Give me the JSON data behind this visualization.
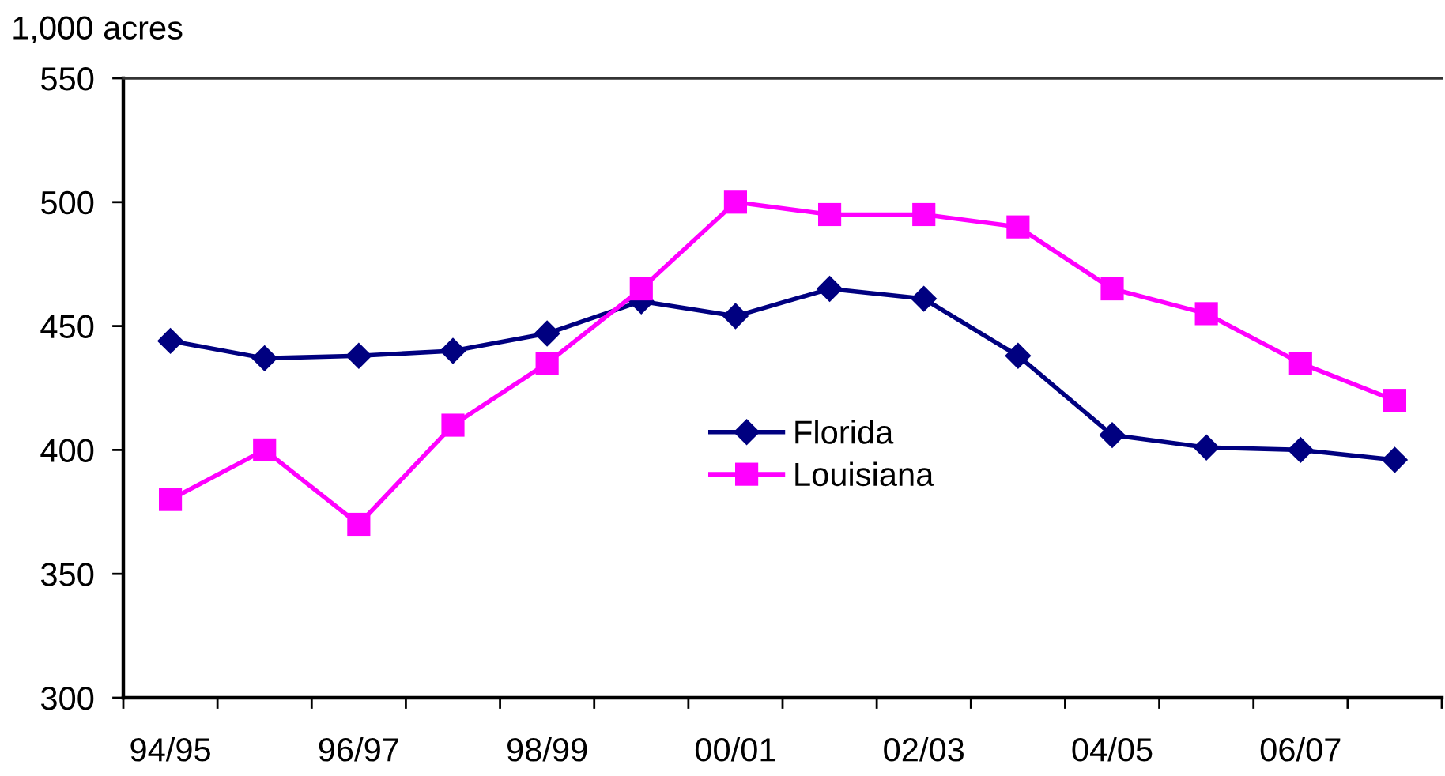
{
  "chart_data": {
    "type": "line",
    "ylabel": "1,000 acres",
    "categories": [
      "94/95",
      null,
      "96/97",
      null,
      "98/99",
      null,
      "00/01",
      null,
      "02/03",
      null,
      "04/05",
      null,
      "06/07",
      null
    ],
    "series": [
      {
        "name": "Florida",
        "color": "#000080",
        "marker": "diamond",
        "values": [
          444,
          437,
          438,
          440,
          447,
          460,
          454,
          465,
          461,
          438,
          406,
          401,
          400,
          396
        ]
      },
      {
        "name": "Louisiana",
        "color": "#ff00ff",
        "marker": "square",
        "values": [
          380,
          400,
          370,
          410,
          435,
          465,
          500,
          495,
          495,
          490,
          465,
          455,
          435,
          420
        ]
      }
    ],
    "ylim": [
      300,
      550
    ],
    "yticks": [
      300,
      350,
      400,
      450,
      500,
      550
    ],
    "legend": "center",
    "line_style": "solid"
  }
}
